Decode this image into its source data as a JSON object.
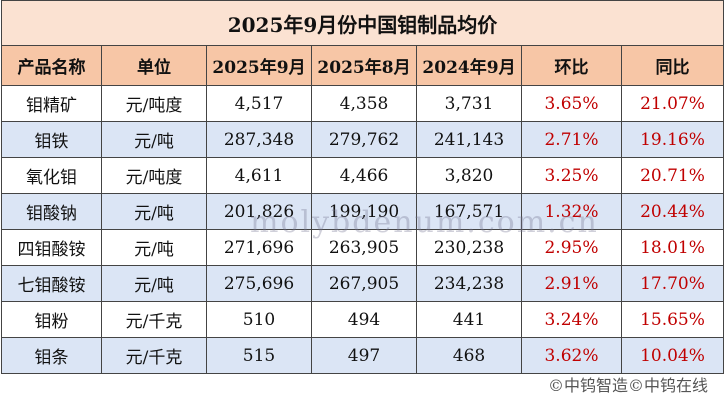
{
  "header": {
    "title": "2025年9月份中国钼制品均价"
  },
  "table": {
    "columns": [
      "产品名称",
      "单位",
      "2025年9月",
      "2025年8月",
      "2024年9月",
      "环比",
      "同比"
    ],
    "rows": [
      [
        "钼精矿",
        "元/吨度",
        "4,517",
        "4,358",
        "3,731",
        "3.65%",
        "21.07%"
      ],
      [
        "钼铁",
        "元/吨",
        "287,348",
        "279,762",
        "241,143",
        "2.71%",
        "19.16%"
      ],
      [
        "氧化钼",
        "元/吨度",
        "4,611",
        "4,466",
        "3,820",
        "3.25%",
        "20.71%"
      ],
      [
        "钼酸钠",
        "元/吨",
        "201,826",
        "199,190",
        "167,571",
        "1.32%",
        "20.44%"
      ],
      [
        "四钼酸铵",
        "元/吨",
        "271,696",
        "263,905",
        "230,238",
        "2.95%",
        "18.01%"
      ],
      [
        "七钼酸铵",
        "元/吨",
        "275,696",
        "267,905",
        "234,238",
        "2.91%",
        "17.70%"
      ],
      [
        "钼粉",
        "元/千克",
        "510",
        "494",
        "441",
        "3.24%",
        "15.65%"
      ],
      [
        "钼条",
        "元/千克",
        "515",
        "497",
        "468",
        "3.62%",
        "10.04%"
      ]
    ]
  },
  "watermark": {
    "site": "molybdenum.com.cn",
    "footer": "©中钨智造©中钨在线"
  }
}
